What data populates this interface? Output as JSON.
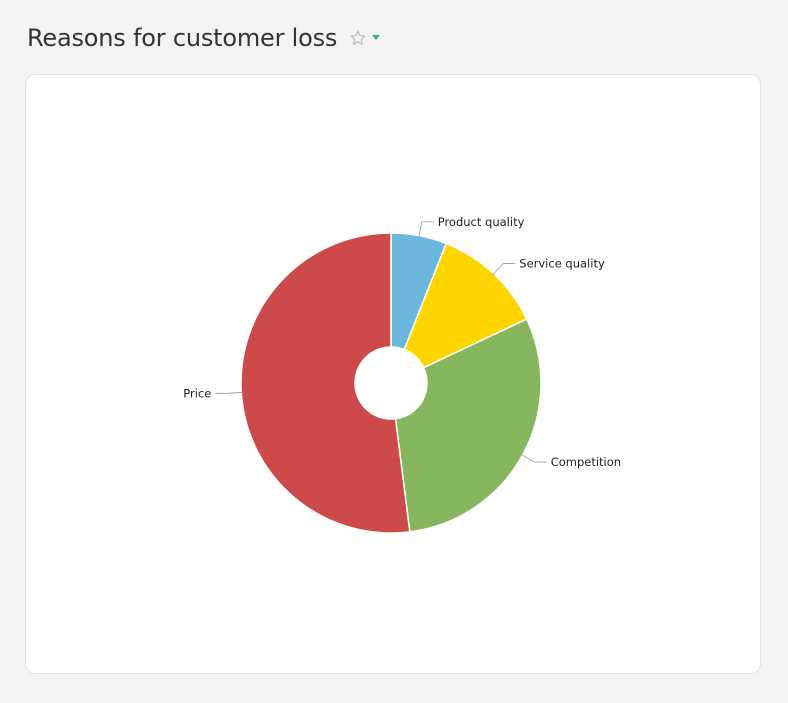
{
  "header": {
    "title": "Reasons for customer loss"
  },
  "icons": {
    "star": "star-outline-icon",
    "caret": "caret-down-icon"
  },
  "colors": {
    "background": "#f3f3f3",
    "card": "#ffffff",
    "accent": "#2bb673"
  },
  "chart_data": {
    "type": "pie",
    "title": "",
    "donut": true,
    "categories": [
      "Product quality",
      "Service quality",
      "Competition",
      "Price"
    ],
    "values": [
      6,
      12,
      30,
      52
    ],
    "colors": [
      "#6bb7dd",
      "#ffd500",
      "#86b75e",
      "#cc4a4a"
    ],
    "legend": "none",
    "labels_outside": true
  }
}
